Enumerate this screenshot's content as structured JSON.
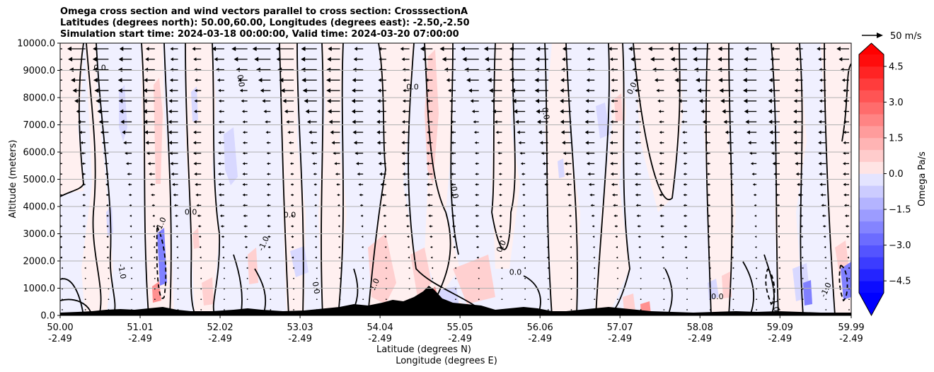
{
  "title_lines": [
    "Omega cross section and wind vectors parallel to cross section: CrosssectionA",
    "Latitudes (degrees north): 50.00,60.00, Longitudes (degrees east): -2.50,-2.50",
    "Simulation start time: 2024-03-18 00:00:00, Valid time: 2024-03-20 07:00:00"
  ],
  "chart_data": {
    "type": "heatmap",
    "ylabel": "Altitude (meters)",
    "xlabel_lines": [
      "Latitude (degrees N)",
      "Longitude (degrees E)"
    ],
    "ylim": [
      0,
      10000
    ],
    "yticks": [
      {
        "value": 0,
        "label": "0.0"
      },
      {
        "value": 1000,
        "label": "1000.0"
      },
      {
        "value": 2000,
        "label": "2000.0"
      },
      {
        "value": 3000,
        "label": "3000.0"
      },
      {
        "value": 4000,
        "label": "4000.0"
      },
      {
        "value": 5000,
        "label": "5000.0"
      },
      {
        "value": 6000,
        "label": "6000.0"
      },
      {
        "value": 7000,
        "label": "7000.0"
      },
      {
        "value": 8000,
        "label": "8000.0"
      },
      {
        "value": 9000,
        "label": "9000.0"
      },
      {
        "value": 10000,
        "label": "10000.0"
      }
    ],
    "xlim": [
      50.0,
      59.99
    ],
    "xticks": [
      {
        "lat": 50.0,
        "lat_label": "50.00",
        "lon_label": "-2.49"
      },
      {
        "lat": 51.01,
        "lat_label": "51.01",
        "lon_label": "-2.49"
      },
      {
        "lat": 52.02,
        "lat_label": "52.02",
        "lon_label": "-2.49"
      },
      {
        "lat": 53.03,
        "lat_label": "53.03",
        "lon_label": "-2.49"
      },
      {
        "lat": 54.04,
        "lat_label": "54.04",
        "lon_label": "-2.49"
      },
      {
        "lat": 55.05,
        "lat_label": "55.05",
        "lon_label": "-2.49"
      },
      {
        "lat": 56.06,
        "lat_label": "56.06",
        "lon_label": "-2.49"
      },
      {
        "lat": 57.07,
        "lat_label": "57.07",
        "lon_label": "-2.49"
      },
      {
        "lat": 58.08,
        "lat_label": "58.08",
        "lon_label": "-2.49"
      },
      {
        "lat": 59.09,
        "lat_label": "59.09",
        "lon_label": "-2.49"
      },
      {
        "lat": 59.99,
        "lat_label": "59.99",
        "lon_label": "-2.49"
      }
    ],
    "grid": "horizontal",
    "colorbar": {
      "label": "Omega Pa/s",
      "range": [
        -5,
        5
      ],
      "ticks": [
        {
          "value": 4.5,
          "label": "4.5"
        },
        {
          "value": 3.0,
          "label": "3.0"
        },
        {
          "value": 1.5,
          "label": "1.5"
        },
        {
          "value": 0.0,
          "label": "0.0"
        },
        {
          "value": -1.5,
          "label": "−1.5"
        },
        {
          "value": -3.0,
          "label": "−3.0"
        },
        {
          "value": -4.5,
          "label": "−4.5"
        }
      ],
      "extend": "both",
      "colormap": "bwr"
    },
    "quiver_key": {
      "label": "50 m/s",
      "placement": "top-right"
    },
    "wind_direction": "toward decreasing latitude",
    "contour_labels": [
      {
        "lat": 50.5,
        "alt": 9000,
        "label": "0.0"
      },
      {
        "lat": 50.75,
        "alt": 1600,
        "label": "-1.0"
      },
      {
        "lat": 51.3,
        "alt": 3300,
        "label": "-1.0"
      },
      {
        "lat": 51.65,
        "alt": 3700,
        "label": "0.0"
      },
      {
        "lat": 52.25,
        "alt": 8600,
        "label": "0.0"
      },
      {
        "lat": 52.6,
        "alt": 2600,
        "label": "-1.0"
      },
      {
        "lat": 52.9,
        "alt": 3600,
        "label": "0.0"
      },
      {
        "lat": 53.2,
        "alt": 1000,
        "label": "0.0"
      },
      {
        "lat": 54.0,
        "alt": 1100,
        "label": "1.0"
      },
      {
        "lat": 54.45,
        "alt": 8300,
        "label": "0.0"
      },
      {
        "lat": 54.95,
        "alt": 4500,
        "label": "0.0"
      },
      {
        "lat": 55.6,
        "alt": 2500,
        "label": "0.0"
      },
      {
        "lat": 55.75,
        "alt": 1500,
        "label": "0.0"
      },
      {
        "lat": 56.1,
        "alt": 7400,
        "label": "0.0"
      },
      {
        "lat": 57.25,
        "alt": 8300,
        "label": "0.0"
      },
      {
        "lat": 58.3,
        "alt": 600,
        "label": "0.0"
      },
      {
        "lat": 59.0,
        "alt": 400,
        "label": "-1.0"
      },
      {
        "lat": 59.7,
        "alt": 900,
        "label": "-1.0"
      }
    ]
  },
  "colors": {
    "positive": "#ff0000",
    "negative": "#0000ff",
    "near_zero_positive": "#fff0f0",
    "near_zero_negative": "#f0f0ff",
    "terrain": "#000000",
    "contour": "#000000"
  }
}
